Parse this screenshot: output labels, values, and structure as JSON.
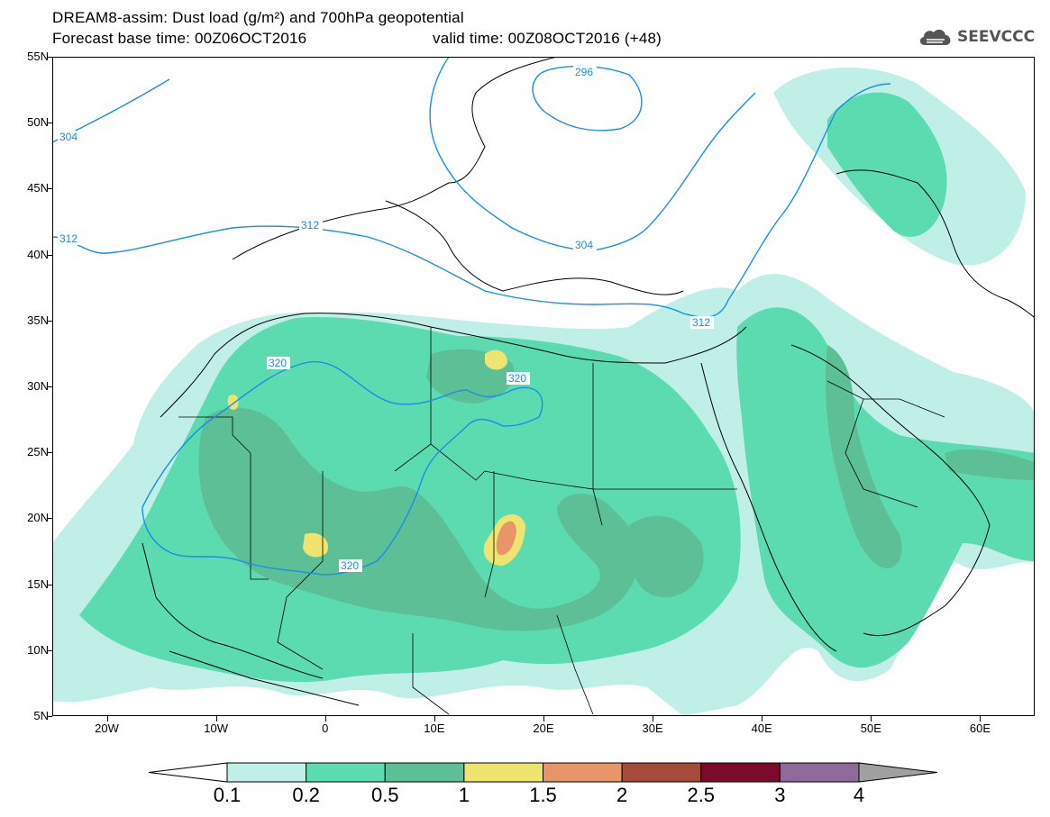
{
  "title": {
    "line1": "DREAM8-assim: Dust load (g/m²) and 700hPa geopotential",
    "line2_left": "Forecast base time: 00Z06OCT2016",
    "line2_right": "valid time: 00Z08OCT2016 (+48)"
  },
  "logo": {
    "text": "SEEVCCC",
    "icon": "cloud-icon"
  },
  "axes": {
    "lat_labels": [
      "55N",
      "50N",
      "45N",
      "40N",
      "35N",
      "30N",
      "25N",
      "20N",
      "15N",
      "10N",
      "5N"
    ],
    "lon_labels": [
      "20W",
      "10W",
      "0",
      "10E",
      "20E",
      "30E",
      "40E",
      "50E",
      "60E"
    ],
    "lat_range": [
      5,
      55
    ],
    "lon_range": [
      -25,
      65
    ]
  },
  "contours": [
    {
      "label": "296"
    },
    {
      "label": "304"
    },
    {
      "label": "304"
    },
    {
      "label": "312"
    },
    {
      "label": "312"
    },
    {
      "label": "312"
    },
    {
      "label": "320"
    },
    {
      "label": "320"
    },
    {
      "label": "320"
    }
  ],
  "colorbar": {
    "labels": [
      "0.1",
      "0.2",
      "0.5",
      "1",
      "1.5",
      "2",
      "2.5",
      "3",
      "4"
    ],
    "colors": [
      "#c0efe8",
      "#5ddbb0",
      "#5cbf95",
      "#f0e470",
      "#e9956a",
      "#a64b3c",
      "#7c0b2b",
      "#8e6a9c"
    ],
    "low_color": "#ffffff",
    "high_color": "#a0a0a0"
  }
}
